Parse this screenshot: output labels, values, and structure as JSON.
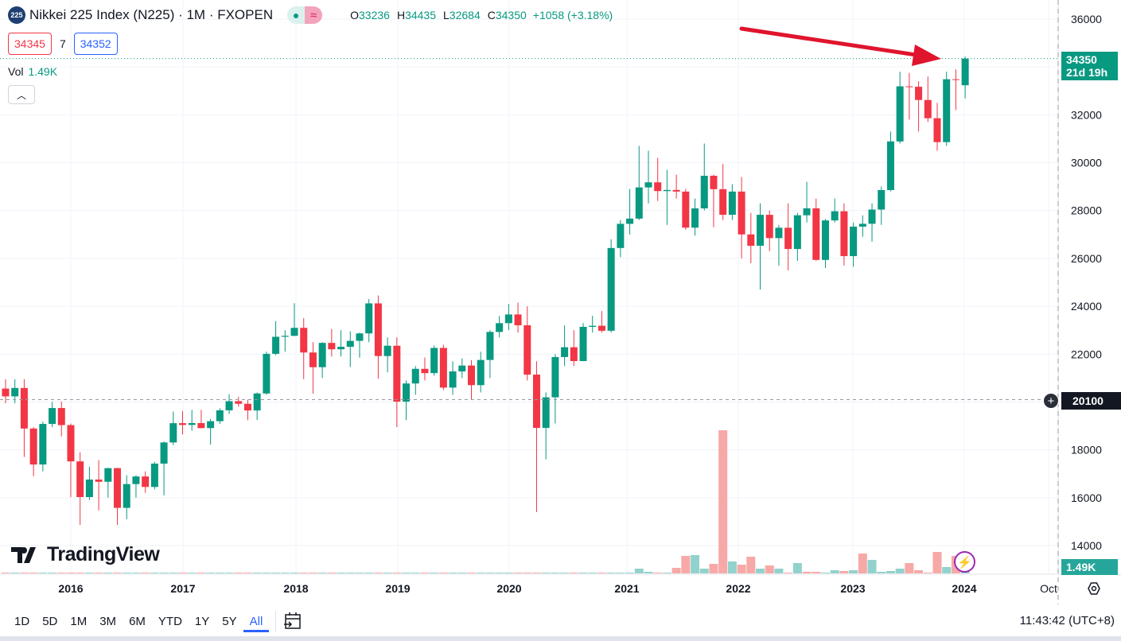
{
  "header": {
    "symbol_badge": "225",
    "title": "Nikkei 225 Index (N225) · 1M · FXOPEN",
    "market_status_icon": "dot-icon",
    "data_icon": "approx-icon",
    "ohlc": {
      "o_label": "O",
      "o": "33236",
      "h_label": "H",
      "h": "34435",
      "l_label": "L",
      "l": "32684",
      "c_label": "C",
      "c": "34350",
      "change": "+1058 (+3.18%)"
    }
  },
  "trade": {
    "sell": "34345",
    "spread": "7",
    "buy": "34352"
  },
  "volume_legend": {
    "label": "Vol",
    "value": "1.49K"
  },
  "price_axis": {
    "last_price": "34350",
    "countdown": "21d 19h",
    "crosshair_price": "20100",
    "volume_label": "1.49K"
  },
  "logo": "TradingView",
  "toolbar": {
    "ranges": [
      "1D",
      "5D",
      "1M",
      "3M",
      "6M",
      "YTD",
      "1Y",
      "5Y",
      "All"
    ],
    "active": "All",
    "clock": "11:43:42 (UTC+8)"
  },
  "colors": {
    "up": "#089981",
    "down": "#f23645",
    "vol_up": "#92d2cc",
    "vol_down": "#f7a9a7",
    "arrow": "#e0142d"
  },
  "chart_data": {
    "type": "candlestick",
    "interval": "1M",
    "ylim": [
      13000,
      36500
    ],
    "yticks": [
      14000,
      16000,
      18000,
      20000,
      22000,
      24000,
      26000,
      28000,
      30000,
      32000,
      34000,
      36000
    ],
    "xticks": [
      "2016",
      "2017",
      "2018",
      "2019",
      "2020",
      "2021",
      "2022",
      "2023",
      "2024",
      "Oct"
    ],
    "grid": true,
    "start_month": "2015-06",
    "ohlc": [
      [
        20560,
        20950,
        19950,
        20235
      ],
      [
        20235,
        20950,
        19950,
        20585
      ],
      [
        20585,
        20950,
        17700,
        18890
      ],
      [
        18890,
        18950,
        16900,
        17388
      ],
      [
        17388,
        19180,
        17100,
        19083
      ],
      [
        19083,
        20010,
        18950,
        19747
      ],
      [
        19747,
        20020,
        18560,
        19034
      ],
      [
        19034,
        19100,
        16020,
        17518
      ],
      [
        17518,
        17900,
        14860,
        16027
      ],
      [
        16027,
        17290,
        15900,
        16759
      ],
      [
        16759,
        17570,
        15470,
        16666
      ],
      [
        16666,
        17250,
        16000,
        17235
      ],
      [
        17235,
        17250,
        14860,
        15576
      ],
      [
        15576,
        16940,
        15100,
        16569
      ],
      [
        16569,
        16940,
        16000,
        16887
      ],
      [
        16887,
        17100,
        16200,
        16450
      ],
      [
        16450,
        17500,
        16350,
        17425
      ],
      [
        17425,
        18350,
        16100,
        18308
      ],
      [
        18308,
        19600,
        18200,
        19114
      ],
      [
        19114,
        19620,
        18650,
        19041
      ],
      [
        19041,
        19670,
        18800,
        19119
      ],
      [
        19119,
        19670,
        18900,
        18909
      ],
      [
        18909,
        19290,
        18220,
        19197
      ],
      [
        19197,
        19740,
        19080,
        19651
      ],
      [
        19651,
        20320,
        19500,
        20033
      ],
      [
        20033,
        20220,
        19800,
        19925
      ],
      [
        19925,
        20100,
        19240,
        19646
      ],
      [
        19646,
        20400,
        19250,
        20356
      ],
      [
        20356,
        22100,
        20300,
        22012
      ],
      [
        22012,
        23380,
        21950,
        22725
      ],
      [
        22725,
        23000,
        22100,
        22765
      ],
      [
        22765,
        24130,
        22750,
        23098
      ],
      [
        23098,
        23500,
        20950,
        22068
      ],
      [
        22068,
        22500,
        20350,
        21454
      ],
      [
        21454,
        22500,
        21000,
        22468
      ],
      [
        22468,
        23050,
        21900,
        22202
      ],
      [
        22202,
        23000,
        21900,
        22305
      ],
      [
        22305,
        22950,
        21460,
        22554
      ],
      [
        22554,
        22900,
        21850,
        22865
      ],
      [
        22865,
        24300,
        22500,
        24120
      ],
      [
        24120,
        24450,
        20970,
        21920
      ],
      [
        21920,
        22700,
        21240,
        22351
      ],
      [
        22351,
        22700,
        18950,
        20015
      ],
      [
        20015,
        20900,
        19240,
        20773
      ],
      [
        20773,
        21500,
        20300,
        21385
      ],
      [
        21385,
        21860,
        20900,
        21206
      ],
      [
        21206,
        22360,
        21100,
        22259
      ],
      [
        22259,
        22390,
        20500,
        20601
      ],
      [
        20601,
        21700,
        20300,
        21276
      ],
      [
        21276,
        21820,
        21000,
        21522
      ],
      [
        21522,
        21750,
        20100,
        20704
      ],
      [
        20704,
        22100,
        20400,
        21756
      ],
      [
        21756,
        23000,
        21000,
        22927
      ],
      [
        22927,
        23600,
        22700,
        23294
      ],
      [
        23294,
        24100,
        23000,
        23657
      ],
      [
        23657,
        24150,
        22900,
        23205
      ],
      [
        23205,
        24000,
        20900,
        21143
      ],
      [
        21143,
        21700,
        15400,
        18917
      ],
      [
        18917,
        20400,
        17600,
        20194
      ],
      [
        20194,
        22000,
        19100,
        21878
      ],
      [
        21878,
        23200,
        21500,
        22288
      ],
      [
        22288,
        23000,
        21500,
        21710
      ],
      [
        21710,
        23300,
        21700,
        23140
      ],
      [
        23140,
        23600,
        22900,
        23185
      ],
      [
        23185,
        23800,
        22900,
        22977
      ],
      [
        22977,
        26800,
        22900,
        26434
      ],
      [
        26434,
        27600,
        26050,
        27444
      ],
      [
        27444,
        28900,
        27000,
        27663
      ],
      [
        27663,
        30700,
        27600,
        28966
      ],
      [
        28966,
        30500,
        28300,
        29179
      ],
      [
        29179,
        30200,
        28400,
        28813
      ],
      [
        28813,
        29700,
        27400,
        28860
      ],
      [
        28860,
        29500,
        28500,
        28792
      ],
      [
        28792,
        28900,
        27200,
        27284
      ],
      [
        27284,
        28500,
        26950,
        28090
      ],
      [
        28090,
        30800,
        28000,
        29453
      ],
      [
        29453,
        29500,
        27300,
        28892
      ],
      [
        28892,
        29950,
        27600,
        27822
      ],
      [
        27822,
        29100,
        27600,
        28792
      ],
      [
        28792,
        29400,
        26000,
        27002
      ],
      [
        27002,
        27900,
        25800,
        26527
      ],
      [
        26527,
        28300,
        24700,
        27821
      ],
      [
        27821,
        28000,
        26300,
        26848
      ],
      [
        26848,
        27400,
        25700,
        27280
      ],
      [
        27280,
        28300,
        25500,
        26393
      ],
      [
        26393,
        27900,
        25900,
        27802
      ],
      [
        27802,
        29200,
        27500,
        28092
      ],
      [
        28092,
        28500,
        25900,
        25937
      ],
      [
        25937,
        27650,
        25600,
        27587
      ],
      [
        27587,
        28500,
        27500,
        27969
      ],
      [
        27969,
        28300,
        25700,
        26095
      ],
      [
        26095,
        27500,
        25650,
        27327
      ],
      [
        27327,
        27800,
        26900,
        27446
      ],
      [
        27446,
        28300,
        26700,
        28041
      ],
      [
        28041,
        29000,
        27400,
        28856
      ],
      [
        28856,
        31300,
        28800,
        30888
      ],
      [
        30888,
        33800,
        30800,
        33189
      ],
      [
        33189,
        33750,
        31800,
        33172
      ],
      [
        33172,
        33400,
        31300,
        32619
      ],
      [
        32619,
        33600,
        31700,
        31858
      ],
      [
        31858,
        32500,
        30500,
        30859
      ],
      [
        30859,
        33800,
        30700,
        33487
      ],
      [
        33487,
        33900,
        32200,
        33464
      ],
      [
        33236,
        34435,
        32684,
        34350
      ]
    ],
    "volume_k_from_2021_01": [
      0.5,
      3,
      1,
      0.5,
      0.5,
      3.5,
      11,
      11.5,
      3,
      6,
      90,
      7.5,
      5.5,
      10.5,
      3,
      5,
      3,
      0.5,
      6.5,
      1,
      1,
      0.5,
      2,
      1.5,
      2,
      12.5,
      8.5,
      1,
      1.5,
      3,
      6.5,
      2,
      0.5,
      13.5,
      4,
      11,
      1.49
    ],
    "volume_colors_from_2021_01": [
      "u",
      "u",
      "u",
      "d",
      "u",
      "d",
      "d",
      "u",
      "u",
      "d",
      "d",
      "u",
      "d",
      "d",
      "u",
      "d",
      "u",
      "d",
      "u",
      "d",
      "d",
      "u",
      "u",
      "d",
      "u",
      "d",
      "u",
      "u",
      "u",
      "u",
      "d",
      "d",
      "d",
      "d",
      "u",
      "d",
      "u"
    ],
    "volume_before_2021_k": 0.2,
    "last_price": 34350,
    "crosshair_price": 20100,
    "annotation": "arrow pointing to latest candle"
  }
}
